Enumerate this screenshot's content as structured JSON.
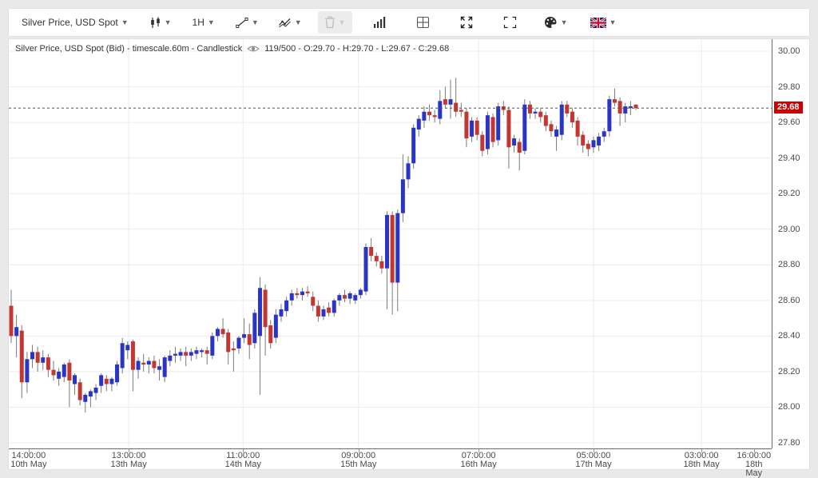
{
  "toolbar": {
    "symbol": "Silver Price, USD Spot",
    "interval": "1H",
    "icons": [
      "candlestick-chart",
      "interval-selector",
      "trendline-tool",
      "indicator-zigzag",
      "delete-drawings",
      "volume-bars",
      "layout-grid",
      "fullscreen-expand",
      "snapshot-frame",
      "theme-palette",
      "language-flag-uk"
    ]
  },
  "legend": {
    "title": "Silver Price, USD Spot (Bid) - timescale.60m - Candlestick",
    "stats": "119/500 - O:29.70 - H:29.70 - L:29.67 - C:29.68"
  },
  "chart_data": {
    "type": "candlestick",
    "title": "Silver Price, USD Spot (Bid)",
    "timescale": "60m",
    "visible_candles": "119/500",
    "last_candle": {
      "open": 29.7,
      "high": 29.7,
      "low": 29.67,
      "close": 29.68
    },
    "last_price": 29.68,
    "last_price_label": "29.68",
    "grid": true,
    "legend_position": "top-left",
    "y_axis": {
      "min": 27.8,
      "max": 30.0,
      "tick_step": 0.2,
      "ticks": [
        "30.00",
        "29.80",
        "29.60",
        "29.40",
        "29.20",
        "29.00",
        "28.80",
        "28.60",
        "28.40",
        "28.20",
        "28.00",
        "27.80"
      ]
    },
    "x_ticks": [
      {
        "time": "14:00:00",
        "date": "10th May",
        "u": 3.3
      },
      {
        "time": "13:00:00",
        "date": "13th May",
        "u": 22.2
      },
      {
        "time": "11:00:00",
        "date": "14th May",
        "u": 43.8
      },
      {
        "time": "09:00:00",
        "date": "15th May",
        "u": 65.6
      },
      {
        "time": "07:00:00",
        "date": "16th May",
        "u": 88.3
      },
      {
        "time": "05:00:00",
        "date": "17th May",
        "u": 110.0
      },
      {
        "time": "03:00:00",
        "date": "18th May",
        "u": 130.4
      },
      {
        "time": "16:00:00",
        "date": "18th May",
        "u": 140.3
      }
    ],
    "x_gridlines_u": [
      22.2,
      43.8,
      65.6,
      88.3,
      110.0,
      130.4
    ],
    "colors": {
      "bull": "#2a35c6",
      "bear": "#c43631",
      "wick": "#7a7a7a",
      "last_price_badge": "#cc0000",
      "grid": "#ececec",
      "dashed_line": "#555555"
    },
    "candles_ohlc": [
      [
        28.57,
        28.66,
        28.36,
        28.4
      ],
      [
        28.4,
        28.52,
        28.28,
        28.45
      ],
      [
        28.43,
        28.46,
        28.05,
        28.14
      ],
      [
        28.14,
        28.31,
        28.08,
        28.27
      ],
      [
        28.27,
        28.35,
        28.22,
        28.31
      ],
      [
        28.31,
        28.34,
        28.2,
        28.25
      ],
      [
        28.25,
        28.32,
        28.21,
        28.28
      ],
      [
        28.28,
        28.3,
        28.17,
        28.21
      ],
      [
        28.21,
        28.26,
        28.15,
        28.18
      ],
      [
        28.16,
        28.22,
        28.12,
        28.2
      ],
      [
        28.17,
        28.25,
        28.14,
        28.24
      ],
      [
        28.25,
        28.27,
        28.0,
        28.15
      ],
      [
        28.13,
        28.19,
        28.07,
        28.18
      ],
      [
        28.14,
        28.16,
        28.01,
        28.04
      ],
      [
        28.03,
        28.08,
        27.97,
        28.07
      ],
      [
        28.06,
        28.1,
        28.0,
        28.09
      ],
      [
        28.08,
        28.13,
        28.04,
        28.11
      ],
      [
        28.12,
        28.19,
        28.08,
        28.18
      ],
      [
        28.16,
        28.18,
        28.09,
        28.13
      ],
      [
        28.13,
        28.17,
        28.09,
        28.16
      ],
      [
        28.14,
        28.26,
        28.12,
        28.24
      ],
      [
        28.22,
        28.39,
        28.19,
        28.36
      ],
      [
        28.32,
        28.37,
        28.27,
        28.35
      ],
      [
        28.37,
        28.38,
        28.09,
        28.21
      ],
      [
        28.21,
        28.28,
        28.16,
        28.26
      ],
      [
        28.25,
        28.3,
        28.2,
        28.24
      ],
      [
        28.24,
        28.28,
        28.19,
        28.26
      ],
      [
        28.26,
        28.29,
        28.19,
        28.22
      ],
      [
        28.21,
        28.27,
        28.15,
        28.23
      ],
      [
        28.17,
        28.29,
        28.14,
        28.28
      ],
      [
        28.26,
        28.32,
        28.23,
        28.29
      ],
      [
        28.29,
        28.34,
        28.25,
        28.3
      ],
      [
        28.29,
        28.33,
        28.26,
        28.31
      ],
      [
        28.31,
        28.34,
        28.23,
        28.29
      ],
      [
        28.29,
        28.33,
        28.26,
        28.31
      ],
      [
        28.3,
        28.34,
        28.27,
        28.32
      ],
      [
        28.31,
        28.33,
        28.28,
        28.32
      ],
      [
        28.32,
        28.34,
        28.24,
        28.3
      ],
      [
        28.29,
        28.42,
        28.27,
        28.4
      ],
      [
        28.4,
        28.45,
        28.37,
        28.44
      ],
      [
        28.44,
        28.5,
        28.39,
        28.41
      ],
      [
        28.42,
        28.44,
        28.24,
        28.31
      ],
      [
        28.33,
        28.37,
        28.2,
        28.32
      ],
      [
        28.33,
        28.4,
        28.3,
        28.39
      ],
      [
        28.39,
        28.5,
        28.36,
        28.41
      ],
      [
        28.41,
        28.47,
        28.27,
        28.35
      ],
      [
        28.36,
        28.55,
        28.33,
        28.53
      ],
      [
        28.4,
        28.73,
        28.07,
        28.67
      ],
      [
        28.66,
        28.69,
        28.29,
        28.45
      ],
      [
        28.46,
        28.49,
        28.33,
        28.36
      ],
      [
        28.39,
        28.55,
        28.36,
        28.52
      ],
      [
        28.51,
        28.58,
        28.48,
        28.55
      ],
      [
        28.54,
        28.62,
        28.51,
        28.6
      ],
      [
        28.6,
        28.66,
        28.57,
        28.64
      ],
      [
        28.64,
        28.67,
        28.61,
        28.63
      ],
      [
        28.63,
        28.67,
        28.6,
        28.65
      ],
      [
        28.65,
        28.68,
        28.62,
        28.64
      ],
      [
        28.62,
        28.65,
        28.54,
        28.57
      ],
      [
        28.57,
        28.6,
        28.48,
        28.51
      ],
      [
        28.51,
        28.57,
        28.49,
        28.55
      ],
      [
        28.56,
        28.59,
        28.51,
        28.53
      ],
      [
        28.53,
        28.61,
        28.51,
        28.6
      ],
      [
        28.6,
        28.64,
        28.57,
        28.63
      ],
      [
        28.63,
        28.66,
        28.59,
        28.61
      ],
      [
        28.61,
        28.65,
        28.58,
        28.64
      ],
      [
        28.6,
        28.64,
        28.58,
        28.63
      ],
      [
        28.63,
        28.67,
        28.61,
        28.66
      ],
      [
        28.65,
        28.92,
        28.63,
        28.9
      ],
      [
        28.9,
        28.95,
        28.82,
        28.85
      ],
      [
        28.85,
        28.87,
        28.79,
        28.82
      ],
      [
        28.82,
        28.85,
        28.75,
        28.78
      ],
      [
        28.78,
        29.1,
        28.55,
        29.08
      ],
      [
        29.08,
        29.1,
        28.52,
        28.7
      ],
      [
        28.7,
        29.11,
        28.54,
        29.09
      ],
      [
        29.09,
        29.42,
        29.04,
        29.28
      ],
      [
        29.28,
        29.41,
        29.23,
        29.37
      ],
      [
        29.37,
        29.59,
        29.34,
        29.57
      ],
      [
        29.56,
        29.64,
        29.52,
        29.62
      ],
      [
        29.61,
        29.69,
        29.57,
        29.66
      ],
      [
        29.66,
        29.7,
        29.61,
        29.64
      ],
      [
        29.64,
        29.67,
        29.6,
        29.63
      ],
      [
        29.62,
        29.78,
        29.59,
        29.72
      ],
      [
        29.73,
        29.8,
        29.68,
        29.7
      ],
      [
        29.7,
        29.84,
        29.62,
        29.73
      ],
      [
        29.71,
        29.85,
        29.63,
        29.66
      ],
      [
        29.67,
        29.71,
        29.63,
        29.66
      ],
      [
        29.66,
        29.68,
        29.46,
        29.51
      ],
      [
        29.52,
        29.63,
        29.49,
        29.61
      ],
      [
        29.61,
        29.63,
        29.5,
        29.53
      ],
      [
        29.53,
        29.55,
        29.41,
        29.44
      ],
      [
        29.45,
        29.66,
        29.42,
        29.64
      ],
      [
        29.63,
        29.65,
        29.46,
        29.49
      ],
      [
        29.5,
        29.71,
        29.47,
        29.69
      ],
      [
        29.69,
        29.72,
        29.64,
        29.67
      ],
      [
        29.67,
        29.69,
        29.34,
        29.46
      ],
      [
        29.47,
        29.53,
        29.43,
        29.51
      ],
      [
        29.49,
        29.51,
        29.33,
        29.43
      ],
      [
        29.44,
        29.73,
        29.42,
        29.7
      ],
      [
        29.7,
        29.72,
        29.62,
        29.65
      ],
      [
        29.65,
        29.68,
        29.62,
        29.66
      ],
      [
        29.66,
        29.68,
        29.6,
        29.63
      ],
      [
        29.64,
        29.66,
        29.55,
        29.58
      ],
      [
        29.59,
        29.61,
        29.52,
        29.55
      ],
      [
        29.52,
        29.58,
        29.44,
        29.56
      ],
      [
        29.53,
        29.72,
        29.5,
        29.7
      ],
      [
        29.7,
        29.72,
        29.63,
        29.65
      ],
      [
        29.66,
        29.68,
        29.57,
        29.6
      ],
      [
        29.61,
        29.63,
        29.47,
        29.52
      ],
      [
        29.53,
        29.55,
        29.43,
        29.47
      ],
      [
        29.48,
        29.5,
        29.41,
        29.45
      ],
      [
        29.46,
        29.52,
        29.43,
        29.5
      ],
      [
        29.47,
        29.54,
        29.44,
        29.52
      ],
      [
        29.52,
        29.57,
        29.49,
        29.55
      ],
      [
        29.55,
        29.75,
        29.52,
        29.73
      ],
      [
        29.73,
        29.79,
        29.69,
        29.71
      ],
      [
        29.72,
        29.74,
        29.58,
        29.65
      ],
      [
        29.65,
        29.71,
        29.6,
        29.69
      ],
      [
        29.68,
        29.72,
        29.64,
        29.69
      ],
      [
        29.7,
        29.7,
        29.67,
        29.68
      ]
    ]
  }
}
